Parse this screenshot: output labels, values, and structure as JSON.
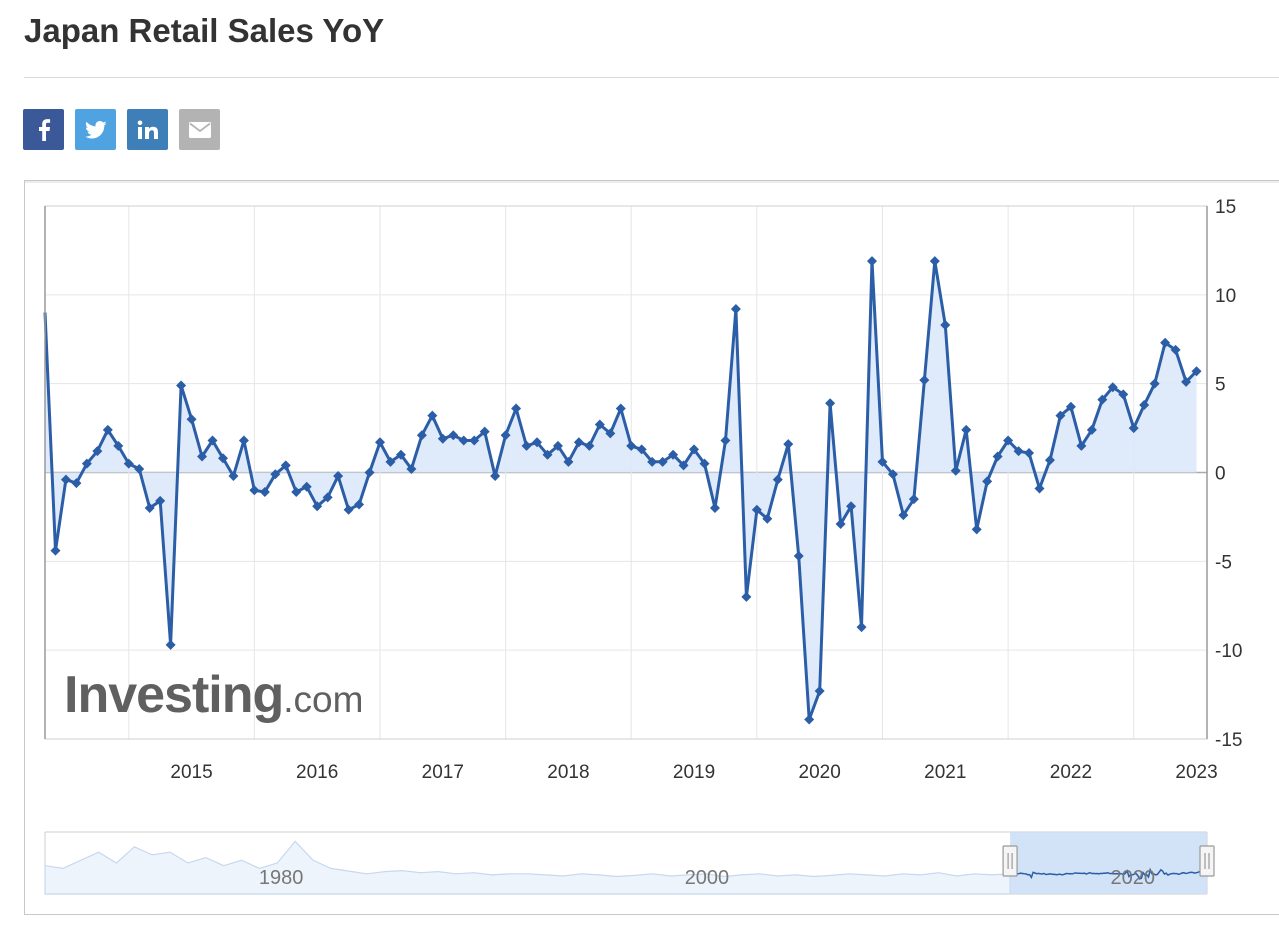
{
  "page": {
    "title": "Japan Retail Sales YoY"
  },
  "share": [
    {
      "name": "facebook",
      "icon": "facebook-icon",
      "color": "#3b5998"
    },
    {
      "name": "twitter",
      "icon": "twitter-icon",
      "color": "#4fa3e0"
    },
    {
      "name": "linkedin",
      "icon": "linkedin-icon",
      "color": "#3f7fb7"
    },
    {
      "name": "email",
      "icon": "mail-icon",
      "color": "#b3b3b3"
    }
  ],
  "watermark": {
    "main": "Investing",
    "suffix": ".com"
  },
  "colors": {
    "line": "#2b5ea7",
    "area": "#dce8fa",
    "grid": "#e6e6e6",
    "zero": "#aaaaaa"
  },
  "chart_data": {
    "type": "area",
    "title": "Japan Retail Sales YoY",
    "xlabel": "",
    "ylabel": "",
    "x_axis_ticks": [
      "2015",
      "2016",
      "2017",
      "2018",
      "2019",
      "2020",
      "2021",
      "2022",
      "2023"
    ],
    "y_axis_ticks": [
      "15",
      "10",
      "5",
      "0",
      "-5",
      "-10",
      "-15"
    ],
    "ylim": [
      -15,
      15
    ],
    "xlim": [
      "2014-05",
      "2023-08"
    ],
    "grid": true,
    "legend": "none",
    "y_axis_position": "right",
    "series": [
      {
        "name": "",
        "points": [
          [
            "2014-05",
            9.0
          ],
          [
            "2014-06",
            -4.4
          ],
          [
            "2014-07",
            -0.4
          ],
          [
            "2014-08",
            -0.6
          ],
          [
            "2014-09",
            0.5
          ],
          [
            "2014-10",
            1.2
          ],
          [
            "2014-11",
            2.4
          ],
          [
            "2014-12",
            1.5
          ],
          [
            "2015-01",
            0.5
          ],
          [
            "2015-02",
            0.2
          ],
          [
            "2015-03",
            -2.0
          ],
          [
            "2015-04",
            -1.6
          ],
          [
            "2015-05",
            -9.7
          ],
          [
            "2015-06",
            4.9
          ],
          [
            "2015-07",
            3.0
          ],
          [
            "2015-08",
            0.9
          ],
          [
            "2015-09",
            1.8
          ],
          [
            "2015-10",
            0.8
          ],
          [
            "2015-11",
            -0.2
          ],
          [
            "2015-12",
            1.8
          ],
          [
            "2016-01",
            -1.0
          ],
          [
            "2016-02",
            -1.1
          ],
          [
            "2016-03",
            -0.1
          ],
          [
            "2016-04",
            0.4
          ],
          [
            "2016-05",
            -1.1
          ],
          [
            "2016-06",
            -0.8
          ],
          [
            "2016-07",
            -1.9
          ],
          [
            "2016-08",
            -1.4
          ],
          [
            "2016-09",
            -0.2
          ],
          [
            "2016-10",
            -2.1
          ],
          [
            "2016-11",
            -1.8
          ],
          [
            "2016-12",
            0.0
          ],
          [
            "2017-01",
            1.7
          ],
          [
            "2017-02",
            0.6
          ],
          [
            "2017-03",
            1.0
          ],
          [
            "2017-04",
            0.2
          ],
          [
            "2017-05",
            2.1
          ],
          [
            "2017-06",
            3.2
          ],
          [
            "2017-07",
            1.9
          ],
          [
            "2017-08",
            2.1
          ],
          [
            "2017-09",
            1.8
          ],
          [
            "2017-10",
            1.8
          ],
          [
            "2017-11",
            2.3
          ],
          [
            "2017-12",
            -0.2
          ],
          [
            "2018-01",
            2.1
          ],
          [
            "2018-02",
            3.6
          ],
          [
            "2018-03",
            1.5
          ],
          [
            "2018-04",
            1.7
          ],
          [
            "2018-05",
            1.0
          ],
          [
            "2018-06",
            1.5
          ],
          [
            "2018-07",
            0.6
          ],
          [
            "2018-08",
            1.7
          ],
          [
            "2018-09",
            1.5
          ],
          [
            "2018-10",
            2.7
          ],
          [
            "2018-11",
            2.2
          ],
          [
            "2018-12",
            3.6
          ],
          [
            "2019-01",
            1.5
          ],
          [
            "2019-02",
            1.3
          ],
          [
            "2019-03",
            0.6
          ],
          [
            "2019-04",
            0.6
          ],
          [
            "2019-05",
            1.0
          ],
          [
            "2019-06",
            0.4
          ],
          [
            "2019-07",
            1.3
          ],
          [
            "2019-08",
            0.5
          ],
          [
            "2019-09",
            -2.0
          ],
          [
            "2019-10",
            1.8
          ],
          [
            "2019-11",
            9.2
          ],
          [
            "2019-12",
            -7.0
          ],
          [
            "2020-01",
            -2.1
          ],
          [
            "2020-02",
            -2.6
          ],
          [
            "2020-03",
            -0.4
          ],
          [
            "2020-04",
            1.6
          ],
          [
            "2020-05",
            -4.7
          ],
          [
            "2020-06",
            -13.9
          ],
          [
            "2020-07",
            -12.3
          ],
          [
            "2020-08",
            3.9
          ],
          [
            "2020-09",
            -2.9
          ],
          [
            "2020-10",
            -1.9
          ],
          [
            "2020-11",
            -8.7
          ],
          [
            "2020-12",
            11.9
          ],
          [
            "2021-01",
            0.6
          ],
          [
            "2021-02",
            -0.1
          ],
          [
            "2021-03",
            -2.4
          ],
          [
            "2021-04",
            -1.5
          ],
          [
            "2021-05",
            5.2
          ],
          [
            "2021-06",
            11.9
          ],
          [
            "2021-07",
            8.3
          ],
          [
            "2021-08",
            0.1
          ],
          [
            "2021-09",
            2.4
          ],
          [
            "2021-10",
            -3.2
          ],
          [
            "2021-11",
            -0.5
          ],
          [
            "2021-12",
            0.9
          ],
          [
            "2022-01",
            1.8
          ],
          [
            "2022-02",
            1.2
          ],
          [
            "2022-03",
            1.1
          ],
          [
            "2022-04",
            -0.9
          ],
          [
            "2022-05",
            0.7
          ],
          [
            "2022-06",
            3.2
          ],
          [
            "2022-07",
            3.7
          ],
          [
            "2022-08",
            1.5
          ],
          [
            "2022-09",
            2.4
          ],
          [
            "2022-10",
            4.1
          ],
          [
            "2022-11",
            4.8
          ],
          [
            "2022-12",
            4.4
          ],
          [
            "2023-01",
            2.5
          ],
          [
            "2023-02",
            3.8
          ],
          [
            "2023-03",
            5.0
          ],
          [
            "2023-04",
            7.3
          ],
          [
            "2023-05",
            6.9
          ],
          [
            "2023-06",
            5.1
          ],
          [
            "2023-07",
            5.7
          ]
        ]
      }
    ],
    "navigator": {
      "x_labels": [
        "1980",
        "2000",
        "2020"
      ],
      "xlim": [
        "1969-01",
        "2023-08"
      ],
      "selected_range": [
        "2014-05",
        "2023-08"
      ]
    }
  }
}
